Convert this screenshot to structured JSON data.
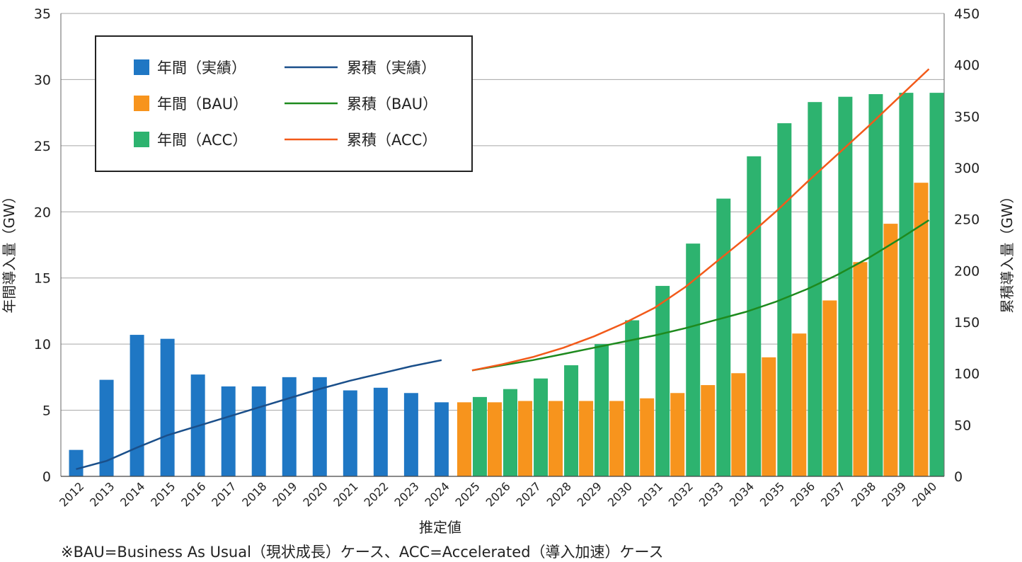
{
  "chart_data": {
    "type": "bar",
    "title": "",
    "xlabel": "推定値",
    "ylabel_left": "年間導入量（GW）",
    "ylabel_right": "累積導入量（GW）",
    "ylim_left": [
      0,
      35
    ],
    "ylim_right": [
      0,
      450
    ],
    "left_ticks": [
      0,
      5,
      10,
      15,
      20,
      25,
      30,
      35
    ],
    "right_ticks": [
      0,
      50,
      100,
      150,
      200,
      250,
      300,
      350,
      400,
      450
    ],
    "grid": "horizontal",
    "legend_position": "top-left",
    "categories": [
      "2012",
      "2013",
      "2014",
      "2015",
      "2016",
      "2017",
      "2018",
      "2019",
      "2020",
      "2021",
      "2022",
      "2023",
      "2024",
      "2025",
      "2026",
      "2027",
      "2028",
      "2029",
      "2030",
      "2031",
      "2032",
      "2033",
      "2034",
      "2035",
      "2036",
      "2037",
      "2038",
      "2039",
      "2040"
    ],
    "bar_series": [
      {
        "name": "年間（実績）",
        "color": "#1f77c4",
        "axis": "left",
        "values": [
          2.0,
          7.3,
          10.7,
          10.4,
          7.7,
          6.8,
          6.8,
          7.5,
          7.5,
          6.5,
          6.7,
          6.3,
          5.6,
          null,
          null,
          null,
          null,
          null,
          null,
          null,
          null,
          null,
          null,
          null,
          null,
          null,
          null,
          null,
          null
        ]
      },
      {
        "name": "年間（BAU）",
        "color": "#f7941d",
        "axis": "left",
        "values": [
          null,
          null,
          null,
          null,
          null,
          null,
          null,
          null,
          null,
          null,
          null,
          null,
          null,
          5.6,
          5.6,
          5.7,
          5.7,
          5.7,
          5.7,
          5.9,
          6.3,
          6.9,
          7.8,
          9.0,
          10.8,
          13.3,
          16.2,
          19.1,
          22.2
        ]
      },
      {
        "name": "年間（ACC）",
        "color": "#2db36f",
        "axis": "left",
        "values": [
          null,
          null,
          null,
          null,
          null,
          null,
          null,
          null,
          null,
          null,
          null,
          null,
          null,
          6.0,
          6.6,
          7.4,
          8.4,
          10.0,
          11.8,
          14.4,
          17.6,
          21.0,
          24.2,
          26.7,
          28.3,
          28.7,
          28.9,
          29.0,
          29.0
        ]
      }
    ],
    "line_series": [
      {
        "name": "累積（実績）",
        "color": "#1a4f8a",
        "axis": "right",
        "values": [
          7,
          15,
          28,
          40,
          49,
          58,
          67,
          76,
          85,
          93,
          100,
          107,
          113,
          null,
          null,
          null,
          null,
          null,
          null,
          null,
          null,
          null,
          null,
          null,
          null,
          null,
          null,
          null,
          null
        ]
      },
      {
        "name": "累積（BAU）",
        "color": "#1e8a1e",
        "axis": "right",
        "values": [
          null,
          null,
          null,
          null,
          null,
          null,
          null,
          null,
          null,
          null,
          null,
          null,
          null,
          103,
          108,
          113,
          119,
          125,
          131,
          137,
          144,
          152,
          160,
          170,
          182,
          196,
          212,
          230,
          249
        ]
      },
      {
        "name": "累積（ACC）",
        "color": "#f25a1a",
        "axis": "right",
        "values": [
          null,
          null,
          null,
          null,
          null,
          null,
          null,
          null,
          null,
          null,
          null,
          null,
          null,
          103,
          109,
          116,
          125,
          136,
          149,
          164,
          184,
          208,
          232,
          258,
          286,
          313,
          340,
          368,
          396
        ]
      }
    ]
  },
  "legend": {
    "bar_actual": "年間（実績）",
    "bar_bau": "年間（BAU）",
    "bar_acc": "年間（ACC）",
    "line_actual": "累積（実績）",
    "line_bau": "累積（BAU）",
    "line_acc": "累積（ACC）"
  },
  "note": "※BAU=Business As Usual（現状成長）ケース、ACC=Accelerated（導入加速）ケース"
}
